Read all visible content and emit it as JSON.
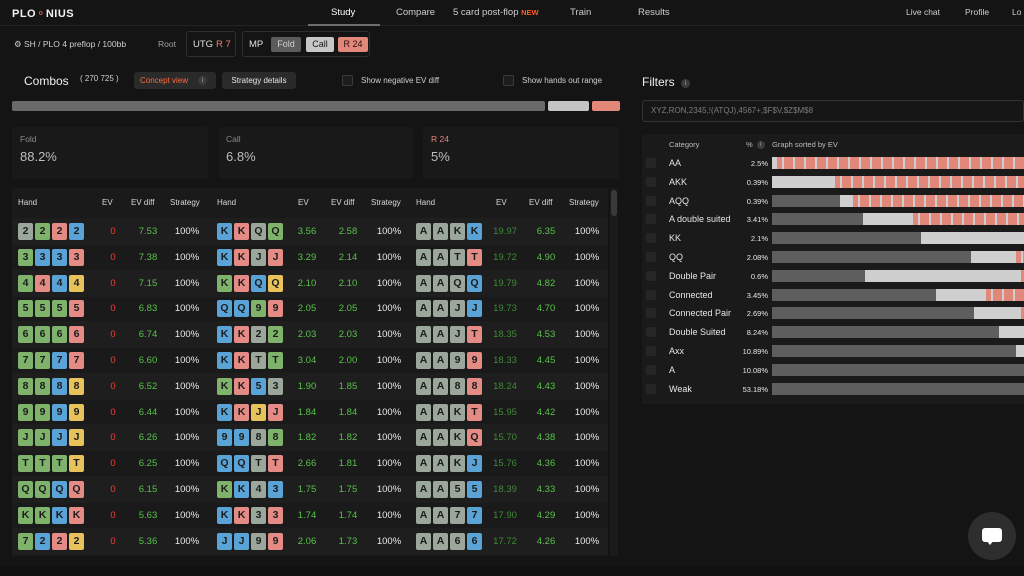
{
  "nav": {
    "logo_a": "PLO",
    "logo_b": "NIUS",
    "items": [
      "Study",
      "Compare",
      "5 card post-flop",
      "Train",
      "Results"
    ],
    "new_badge": "NEW",
    "right": [
      "Live chat",
      "Profile",
      "Lo"
    ]
  },
  "context": {
    "path": "SH / PLO 4 preflop / 100bb",
    "root": "Root",
    "utg_pos": "UTG",
    "utg_action": "R 7",
    "mp_pos": "MP",
    "actions": [
      "Fold",
      "Call",
      "R 24"
    ]
  },
  "combos": {
    "title": "Combos",
    "count": "( 270 725 )",
    "concept_view": "Concept view",
    "info": "i",
    "strategy_details": "Strategy details",
    "show_negative": "Show negative EV diff",
    "show_hands_out": "Show hands out range"
  },
  "strategy_bar": {
    "fold": 0.882,
    "call": 0.068,
    "r24": 0.05
  },
  "summary": [
    {
      "label": "Fold",
      "value": "88.2%"
    },
    {
      "label": "Call",
      "value": "6.8%"
    },
    {
      "label": "R 24",
      "value": "5%"
    }
  ],
  "table": {
    "headers": [
      "Hand",
      "EV",
      "EV diff",
      "Strategy"
    ],
    "suit_colors": {
      "s": "#9aa79a",
      "h": "#e58b85",
      "d": "#5aa3d6",
      "c": "#7fb36c",
      "y": "#e8c25a"
    },
    "col1": [
      {
        "hand": [
          [
            "2",
            "s"
          ],
          [
            "2",
            "c"
          ],
          [
            "2",
            "h"
          ],
          [
            "2",
            "d"
          ]
        ],
        "ev": "0",
        "diff": "7.53",
        "strat": "100%"
      },
      {
        "hand": [
          [
            "3",
            "c"
          ],
          [
            "3",
            "d"
          ],
          [
            "3",
            "d"
          ],
          [
            "3",
            "h"
          ]
        ],
        "ev": "0",
        "diff": "7.38",
        "strat": "100%"
      },
      {
        "hand": [
          [
            "4",
            "c"
          ],
          [
            "4",
            "h"
          ],
          [
            "4",
            "d"
          ],
          [
            "4",
            "y"
          ]
        ],
        "ev": "0",
        "diff": "7.15",
        "strat": "100%"
      },
      {
        "hand": [
          [
            "5",
            "c"
          ],
          [
            "5",
            "c"
          ],
          [
            "5",
            "c"
          ],
          [
            "5",
            "h"
          ]
        ],
        "ev": "0",
        "diff": "6.83",
        "strat": "100%"
      },
      {
        "hand": [
          [
            "6",
            "c"
          ],
          [
            "6",
            "c"
          ],
          [
            "6",
            "c"
          ],
          [
            "6",
            "h"
          ]
        ],
        "ev": "0",
        "diff": "6.74",
        "strat": "100%"
      },
      {
        "hand": [
          [
            "7",
            "c"
          ],
          [
            "7",
            "c"
          ],
          [
            "7",
            "d"
          ],
          [
            "7",
            "h"
          ]
        ],
        "ev": "0",
        "diff": "6.60",
        "strat": "100%"
      },
      {
        "hand": [
          [
            "8",
            "c"
          ],
          [
            "8",
            "c"
          ],
          [
            "8",
            "d"
          ],
          [
            "8",
            "y"
          ]
        ],
        "ev": "0",
        "diff": "6.52",
        "strat": "100%"
      },
      {
        "hand": [
          [
            "9",
            "c"
          ],
          [
            "9",
            "c"
          ],
          [
            "9",
            "d"
          ],
          [
            "9",
            "y"
          ]
        ],
        "ev": "0",
        "diff": "6.44",
        "strat": "100%"
      },
      {
        "hand": [
          [
            "J",
            "c"
          ],
          [
            "J",
            "c"
          ],
          [
            "J",
            "d"
          ],
          [
            "J",
            "y"
          ]
        ],
        "ev": "0",
        "diff": "6.26",
        "strat": "100%"
      },
      {
        "hand": [
          [
            "T",
            "c"
          ],
          [
            "T",
            "c"
          ],
          [
            "T",
            "c"
          ],
          [
            "T",
            "y"
          ]
        ],
        "ev": "0",
        "diff": "6.25",
        "strat": "100%"
      },
      {
        "hand": [
          [
            "Q",
            "c"
          ],
          [
            "Q",
            "c"
          ],
          [
            "Q",
            "d"
          ],
          [
            "Q",
            "h"
          ]
        ],
        "ev": "0",
        "diff": "6.15",
        "strat": "100%"
      },
      {
        "hand": [
          [
            "K",
            "c"
          ],
          [
            "K",
            "c"
          ],
          [
            "K",
            "d"
          ],
          [
            "K",
            "h"
          ]
        ],
        "ev": "0",
        "diff": "5.63",
        "strat": "100%"
      },
      {
        "hand": [
          [
            "7",
            "c"
          ],
          [
            "2",
            "d"
          ],
          [
            "2",
            "h"
          ],
          [
            "2",
            "y"
          ]
        ],
        "ev": "0",
        "diff": "5.36",
        "strat": "100%"
      }
    ],
    "col2": [
      {
        "hand": [
          [
            "K",
            "d"
          ],
          [
            "K",
            "h"
          ],
          [
            "Q",
            "s"
          ],
          [
            "Q",
            "c"
          ]
        ],
        "ev": "3.56",
        "diff": "2.58",
        "strat": "100%"
      },
      {
        "hand": [
          [
            "K",
            "d"
          ],
          [
            "K",
            "h"
          ],
          [
            "J",
            "s"
          ],
          [
            "J",
            "h"
          ]
        ],
        "ev": "3.29",
        "diff": "2.14",
        "strat": "100%"
      },
      {
        "hand": [
          [
            "K",
            "c"
          ],
          [
            "K",
            "h"
          ],
          [
            "Q",
            "d"
          ],
          [
            "Q",
            "y"
          ]
        ],
        "ev": "2.10",
        "diff": "2.10",
        "strat": "100%"
      },
      {
        "hand": [
          [
            "Q",
            "d"
          ],
          [
            "Q",
            "d"
          ],
          [
            "9",
            "c"
          ],
          [
            "9",
            "h"
          ]
        ],
        "ev": "2.05",
        "diff": "2.05",
        "strat": "100%"
      },
      {
        "hand": [
          [
            "K",
            "d"
          ],
          [
            "K",
            "h"
          ],
          [
            "2",
            "s"
          ],
          [
            "2",
            "c"
          ]
        ],
        "ev": "2.03",
        "diff": "2.03",
        "strat": "100%"
      },
      {
        "hand": [
          [
            "K",
            "d"
          ],
          [
            "K",
            "h"
          ],
          [
            "T",
            "s"
          ],
          [
            "T",
            "c"
          ]
        ],
        "ev": "3.04",
        "diff": "2.00",
        "strat": "100%"
      },
      {
        "hand": [
          [
            "K",
            "c"
          ],
          [
            "K",
            "h"
          ],
          [
            "5",
            "d"
          ],
          [
            "3",
            "s"
          ]
        ],
        "ev": "1.90",
        "diff": "1.85",
        "strat": "100%"
      },
      {
        "hand": [
          [
            "K",
            "d"
          ],
          [
            "K",
            "h"
          ],
          [
            "J",
            "y"
          ],
          [
            "J",
            "h"
          ]
        ],
        "ev": "1.84",
        "diff": "1.84",
        "strat": "100%"
      },
      {
        "hand": [
          [
            "9",
            "d"
          ],
          [
            "9",
            "d"
          ],
          [
            "8",
            "s"
          ],
          [
            "8",
            "c"
          ]
        ],
        "ev": "1.82",
        "diff": "1.82",
        "strat": "100%"
      },
      {
        "hand": [
          [
            "Q",
            "d"
          ],
          [
            "Q",
            "d"
          ],
          [
            "T",
            "s"
          ],
          [
            "T",
            "h"
          ]
        ],
        "ev": "2.66",
        "diff": "1.81",
        "strat": "100%"
      },
      {
        "hand": [
          [
            "K",
            "c"
          ],
          [
            "K",
            "d"
          ],
          [
            "4",
            "s"
          ],
          [
            "3",
            "d"
          ]
        ],
        "ev": "1.75",
        "diff": "1.75",
        "strat": "100%"
      },
      {
        "hand": [
          [
            "K",
            "d"
          ],
          [
            "K",
            "h"
          ],
          [
            "3",
            "s"
          ],
          [
            "3",
            "h"
          ]
        ],
        "ev": "1.74",
        "diff": "1.74",
        "strat": "100%"
      },
      {
        "hand": [
          [
            "J",
            "d"
          ],
          [
            "J",
            "d"
          ],
          [
            "9",
            "s"
          ],
          [
            "9",
            "h"
          ]
        ],
        "ev": "2.06",
        "diff": "1.73",
        "strat": "100%"
      }
    ],
    "col3": [
      {
        "hand": [
          [
            "A",
            "s"
          ],
          [
            "A",
            "s"
          ],
          [
            "K",
            "s"
          ],
          [
            "K",
            "d"
          ]
        ],
        "ev": "19.97",
        "diff": "6.35",
        "strat": "100%"
      },
      {
        "hand": [
          [
            "A",
            "s"
          ],
          [
            "A",
            "s"
          ],
          [
            "T",
            "s"
          ],
          [
            "T",
            "h"
          ]
        ],
        "ev": "19.72",
        "diff": "4.90",
        "strat": "100%"
      },
      {
        "hand": [
          [
            "A",
            "s"
          ],
          [
            "A",
            "s"
          ],
          [
            "Q",
            "s"
          ],
          [
            "Q",
            "d"
          ]
        ],
        "ev": "19.79",
        "diff": "4.82",
        "strat": "100%"
      },
      {
        "hand": [
          [
            "A",
            "s"
          ],
          [
            "A",
            "s"
          ],
          [
            "J",
            "s"
          ],
          [
            "J",
            "d"
          ]
        ],
        "ev": "19.73",
        "diff": "4.70",
        "strat": "100%"
      },
      {
        "hand": [
          [
            "A",
            "s"
          ],
          [
            "A",
            "s"
          ],
          [
            "J",
            "s"
          ],
          [
            "T",
            "h"
          ]
        ],
        "ev": "18.35",
        "diff": "4.53",
        "strat": "100%"
      },
      {
        "hand": [
          [
            "A",
            "s"
          ],
          [
            "A",
            "s"
          ],
          [
            "9",
            "s"
          ],
          [
            "9",
            "h"
          ]
        ],
        "ev": "18.33",
        "diff": "4.45",
        "strat": "100%"
      },
      {
        "hand": [
          [
            "A",
            "s"
          ],
          [
            "A",
            "s"
          ],
          [
            "8",
            "s"
          ],
          [
            "8",
            "h"
          ]
        ],
        "ev": "18.24",
        "diff": "4.43",
        "strat": "100%"
      },
      {
        "hand": [
          [
            "A",
            "s"
          ],
          [
            "A",
            "s"
          ],
          [
            "K",
            "s"
          ],
          [
            "T",
            "h"
          ]
        ],
        "ev": "15.95",
        "diff": "4.42",
        "strat": "100%"
      },
      {
        "hand": [
          [
            "A",
            "s"
          ],
          [
            "A",
            "s"
          ],
          [
            "K",
            "s"
          ],
          [
            "Q",
            "h"
          ]
        ],
        "ev": "15.70",
        "diff": "4.38",
        "strat": "100%"
      },
      {
        "hand": [
          [
            "A",
            "s"
          ],
          [
            "A",
            "s"
          ],
          [
            "K",
            "s"
          ],
          [
            "J",
            "d"
          ]
        ],
        "ev": "15.76",
        "diff": "4.36",
        "strat": "100%"
      },
      {
        "hand": [
          [
            "A",
            "s"
          ],
          [
            "A",
            "s"
          ],
          [
            "5",
            "s"
          ],
          [
            "5",
            "d"
          ]
        ],
        "ev": "18.39",
        "diff": "4.33",
        "strat": "100%"
      },
      {
        "hand": [
          [
            "A",
            "s"
          ],
          [
            "A",
            "s"
          ],
          [
            "7",
            "s"
          ],
          [
            "7",
            "d"
          ]
        ],
        "ev": "17.90",
        "diff": "4.29",
        "strat": "100%"
      },
      {
        "hand": [
          [
            "A",
            "s"
          ],
          [
            "A",
            "s"
          ],
          [
            "6",
            "s"
          ],
          [
            "6",
            "d"
          ]
        ],
        "ev": "17.72",
        "diff": "4.26",
        "strat": "100%"
      }
    ]
  },
  "filters": {
    "title": "Filters",
    "info": "i",
    "input_value": "XYZ,RON,2345,!(ATQJ),4567+,$F$V,$Z$M$8",
    "headers": [
      "Category",
      "%",
      "Graph sorted by EV"
    ],
    "rows": [
      {
        "name": "AA",
        "pct": "2.5%",
        "gray": 0.0,
        "light": 0.02
      },
      {
        "name": "AKK",
        "pct": "0.39%",
        "gray": 0.0,
        "light": 0.25
      },
      {
        "name": "AQQ",
        "pct": "0.39%",
        "gray": 0.27,
        "light": 0.05
      },
      {
        "name": "A double suited",
        "pct": "3.41%",
        "gray": 0.36,
        "light": 0.2
      },
      {
        "name": "KK",
        "pct": "2.1%",
        "gray": 0.59,
        "light": 0.41
      },
      {
        "name": "QQ",
        "pct": "2.08%",
        "gray": 0.79,
        "light": 0.18
      },
      {
        "name": "Double Pair",
        "pct": "0.6%",
        "gray": 0.37,
        "light": 0.62
      },
      {
        "name": "Connected",
        "pct": "3.45%",
        "gray": 0.65,
        "light": 0.2
      },
      {
        "name": "Connected Pair",
        "pct": "2.69%",
        "gray": 0.8,
        "light": 0.19
      },
      {
        "name": "Double Suited",
        "pct": "8.24%",
        "gray": 0.9,
        "light": 0.1
      },
      {
        "name": "Axx",
        "pct": "10.89%",
        "gray": 0.97,
        "light": 0.03
      },
      {
        "name": "A",
        "pct": "10.08%",
        "gray": 1.0,
        "light": 0.0
      },
      {
        "name": "Weak",
        "pct": "53.18%",
        "gray": 1.0,
        "light": 0.0
      }
    ]
  }
}
